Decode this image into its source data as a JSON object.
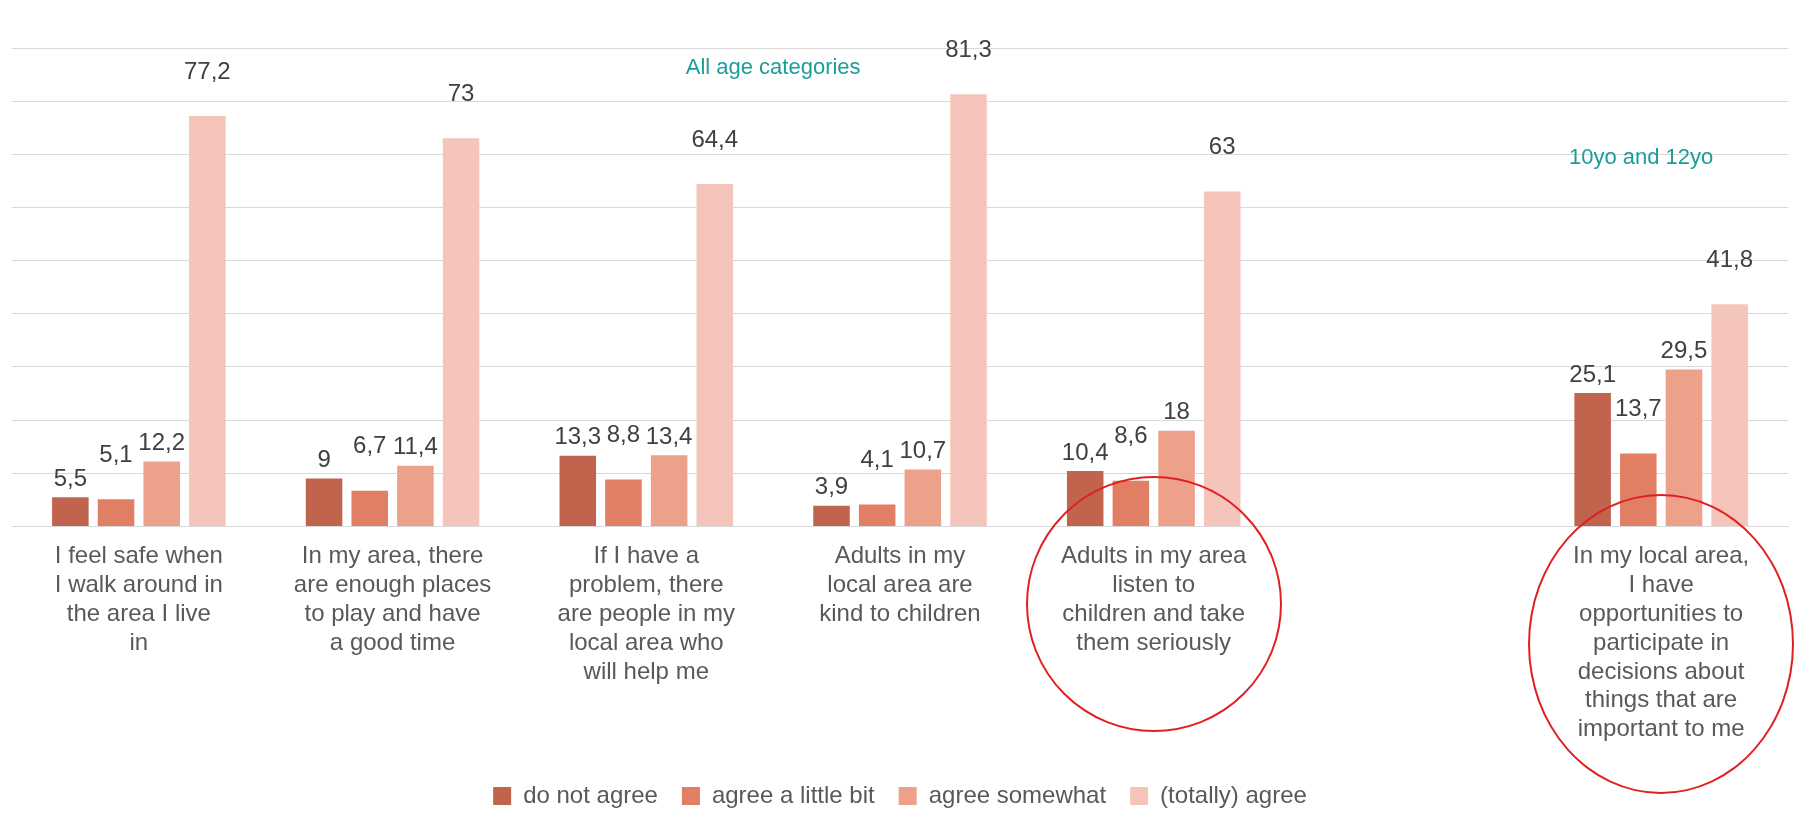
{
  "chart_data": {
    "type": "bar",
    "categories": [
      "I feel safe when I walk around in the area I live in",
      "In my area, there are enough places to play and have a good time",
      "If I have a problem, there are people in my local area who will help me",
      "Adults in my local area are kind to children",
      "Adults in my area listen to children and take them seriously",
      null,
      "In my local area, I have opportunities to participate in decisions about things that are important to me"
    ],
    "series": [
      {
        "name": "do not agree",
        "color": "#c0644e",
        "values": [
          5.5,
          9,
          13.3,
          3.9,
          10.4,
          null,
          25.1
        ],
        "value_labels": [
          "5,5",
          "9",
          "13,3",
          "3,9",
          "10,4",
          null,
          "25,1"
        ]
      },
      {
        "name": "agree a little bit",
        "color": "#e07f63",
        "values": [
          5.1,
          6.7,
          8.8,
          4.1,
          8.6,
          null,
          13.7
        ],
        "value_labels": [
          "5,1",
          "6,7",
          "8,8",
          "4,1",
          "8,6",
          null,
          "13,7"
        ]
      },
      {
        "name": "agree somewhat",
        "color": "#eda08a",
        "values": [
          12.2,
          11.4,
          13.4,
          10.7,
          18,
          null,
          29.5
        ],
        "value_labels": [
          "12,2",
          "11,4",
          "13,4",
          "10,7",
          "18",
          null,
          "29,5"
        ]
      },
      {
        "name": "(totally) agree",
        "color": "#f5c4ba",
        "values": [
          77.2,
          73,
          64.4,
          81.3,
          63,
          null,
          41.8
        ],
        "value_labels": [
          "77,2",
          "73",
          "64,4",
          "81,3",
          "63",
          null,
          "41,8"
        ]
      }
    ],
    "annotations": [
      "All age categories",
      "10yo and 12yo"
    ],
    "ylim": [
      0,
      90
    ],
    "yticks": [
      {
        "value": 0,
        "label": null
      },
      {
        "value": 10,
        "label": null
      },
      {
        "value": 20,
        "label": null
      },
      {
        "value": 30,
        "label": null
      },
      {
        "value": 40,
        "label": null
      },
      {
        "value": 50,
        "label": null
      },
      {
        "value": 60,
        "label": null
      },
      {
        "value": 70,
        "label": null
      },
      {
        "value": 80,
        "label": null
      },
      {
        "value": 90,
        "label": null
      }
    ],
    "tick_labels": "x",
    "grid": "y",
    "legend": "bottom"
  }
}
